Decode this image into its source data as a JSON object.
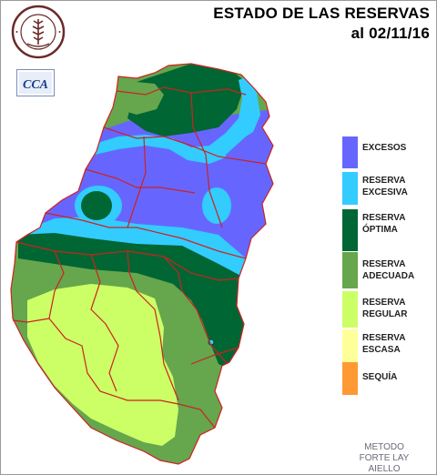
{
  "header": {
    "title_line1": "ESTADO DE LAS RESERVAS",
    "title_line2": "al 02/11/16"
  },
  "logos": {
    "seal_text_top": "BOLSA DE CEREALES",
    "seal_text_bottom": "DE ENTRE RIOS",
    "cca_text": "CCA"
  },
  "legend": {
    "items": [
      {
        "label": "EXCESOS",
        "color": "#6666ff"
      },
      {
        "label": "RESERVA\nEXCESIVA",
        "color": "#33ccff"
      },
      {
        "label": "RESERVA\nÓPTIMA",
        "color": "#006633"
      },
      {
        "label": "RESERVA\nADECUADA",
        "color": "#66a64d"
      },
      {
        "label": "RESERVA\nREGULAR",
        "color": "#ccff66"
      },
      {
        "label": "RESERVA\nESCASA",
        "color": "#ffff99"
      },
      {
        "label": "SEQUÍA",
        "color": "#ff9933"
      }
    ]
  },
  "footer": {
    "method": "METODO\nFORTE LAY\nAIELLO"
  },
  "colors": {
    "excesos": "#6666ff",
    "excesiva": "#33ccff",
    "optima": "#006633",
    "adecuada": "#66a64d",
    "regular": "#ccff66",
    "escasa": "#ffff99",
    "sequia": "#ff9933",
    "borders": "#cc2222"
  }
}
